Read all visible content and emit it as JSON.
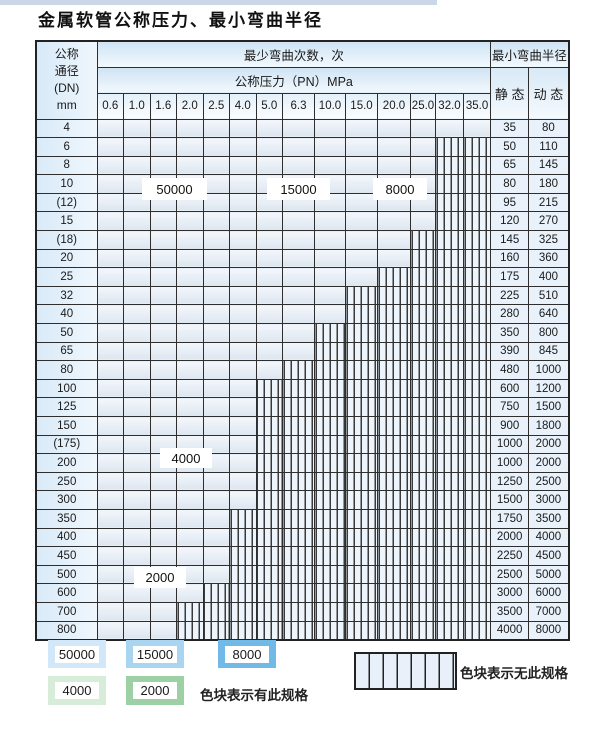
{
  "page": {
    "title": "金属软管公称压力、最小弯曲半径"
  },
  "colors": {
    "b1": "#d2e7f7",
    "b2": "#a9d5f1",
    "b3": "#71bae7",
    "g1": "#d8ecda",
    "g2": "#9dd0a5"
  },
  "table": {
    "header": {
      "dn_lines": [
        "公称",
        "通径",
        "(DN)",
        "mm"
      ],
      "bend_cycles": "最少弯曲次数，次",
      "pressure": "公称压力（PN）MPa",
      "min_radius": "最小弯曲半径",
      "static": "静 态",
      "dynamic": "动 态",
      "pressure_cols": [
        "0.6",
        "1.0",
        "1.6",
        "2.0",
        "2.5",
        "4.0",
        "5.0",
        "6.3",
        "10.0",
        "15.0",
        "20.0",
        "25.0",
        "32.0",
        "35.0"
      ]
    },
    "rows": [
      {
        "dn": "4",
        "static": "35",
        "dynamic": "80",
        "cells": [
          "b1",
          "b1",
          "b1",
          "b1",
          "b1",
          "b1",
          "b2",
          "b2",
          "b2",
          "b3",
          "b3",
          "b3",
          "b3",
          "b3"
        ]
      },
      {
        "dn": "6",
        "static": "50",
        "dynamic": "110",
        "cells": [
          "b1",
          "b1",
          "b1",
          "b1",
          "b1",
          "b1",
          "b2",
          "b2",
          "b2",
          "b3",
          "b3",
          "b3",
          "h",
          "h"
        ]
      },
      {
        "dn": "8",
        "static": "65",
        "dynamic": "145",
        "cells": [
          "b1",
          "b1",
          "b1",
          "b1",
          "b1",
          "b1",
          "b2",
          "b2",
          "b2",
          "b3",
          "b3",
          "b3",
          "h",
          "h"
        ]
      },
      {
        "dn": "10",
        "static": "80",
        "dynamic": "180",
        "cells": [
          "b1",
          "b1",
          "b1",
          "b1",
          "b1",
          "b1",
          "b2",
          "b2",
          "b2",
          "b3",
          "b3",
          "b3",
          "h",
          "h"
        ]
      },
      {
        "dn": "(12)",
        "static": "95",
        "dynamic": "215",
        "cells": [
          "b1",
          "b1",
          "b1",
          "b1",
          "b1",
          "b1",
          "b2",
          "b2",
          "b2",
          "b3",
          "b3",
          "b3",
          "h",
          "h"
        ]
      },
      {
        "dn": "15",
        "static": "120",
        "dynamic": "270",
        "cells": [
          "b1",
          "b1",
          "b1",
          "b1",
          "b1",
          "b1",
          "b2",
          "b2",
          "b2",
          "b3",
          "b3",
          "b3",
          "h",
          "h"
        ]
      },
      {
        "dn": "(18)",
        "static": "145",
        "dynamic": "325",
        "cells": [
          "b1",
          "b1",
          "b1",
          "b1",
          "b1",
          "b1",
          "b2",
          "b2",
          "b2",
          "b3",
          "b3",
          "h",
          "h",
          "h"
        ]
      },
      {
        "dn": "20",
        "static": "160",
        "dynamic": "360",
        "cells": [
          "b1",
          "b1",
          "b1",
          "b1",
          "b1",
          "b1",
          "b2",
          "b2",
          "b2",
          "b3",
          "b3",
          "h",
          "h",
          "h"
        ]
      },
      {
        "dn": "25",
        "static": "175",
        "dynamic": "400",
        "cells": [
          "b1",
          "b1",
          "b1",
          "b1",
          "b1",
          "b1",
          "b2",
          "b2",
          "b2",
          "b3",
          "h",
          "h",
          "h",
          "h"
        ]
      },
      {
        "dn": "32",
        "static": "225",
        "dynamic": "510",
        "cells": [
          "b1",
          "b1",
          "b1",
          "b1",
          "b1",
          "b2",
          "b2",
          "b3",
          "b3",
          "h",
          "h",
          "h",
          "h",
          "h"
        ]
      },
      {
        "dn": "40",
        "static": "280",
        "dynamic": "640",
        "cells": [
          "b1",
          "b1",
          "b1",
          "b1",
          "b1",
          "b2",
          "b2",
          "b3",
          "b3",
          "h",
          "h",
          "h",
          "h",
          "h"
        ]
      },
      {
        "dn": "50",
        "static": "350",
        "dynamic": "800",
        "cells": [
          "b1",
          "b1",
          "b1",
          "b1",
          "b1",
          "b2",
          "b3",
          "b3",
          "h",
          "h",
          "h",
          "h",
          "h",
          "h"
        ]
      },
      {
        "dn": "65",
        "static": "390",
        "dynamic": "845",
        "cells": [
          "b1",
          "b1",
          "b1",
          "b1",
          "b1",
          "b2",
          "b3",
          "b3",
          "h",
          "h",
          "h",
          "h",
          "h",
          "h"
        ]
      },
      {
        "dn": "80",
        "static": "480",
        "dynamic": "1000",
        "cells": [
          "b1",
          "b1",
          "b1",
          "b1",
          "b2",
          "b3",
          "b3",
          "h",
          "h",
          "h",
          "h",
          "h",
          "h",
          "h"
        ]
      },
      {
        "dn": "100",
        "static": "600",
        "dynamic": "1200",
        "cells": [
          "g1",
          "g1",
          "g1",
          "g1",
          "g1",
          "g1",
          "h",
          "h",
          "h",
          "h",
          "h",
          "h",
          "h",
          "h"
        ]
      },
      {
        "dn": "125",
        "static": "750",
        "dynamic": "1500",
        "cells": [
          "g1",
          "g1",
          "g1",
          "g1",
          "g1",
          "g1",
          "h",
          "h",
          "h",
          "h",
          "h",
          "h",
          "h",
          "h"
        ]
      },
      {
        "dn": "150",
        "static": "900",
        "dynamic": "1800",
        "cells": [
          "g1",
          "g1",
          "g1",
          "g1",
          "g1",
          "g1",
          "h",
          "h",
          "h",
          "h",
          "h",
          "h",
          "h",
          "h"
        ]
      },
      {
        "dn": "(175)",
        "static": "1000",
        "dynamic": "2000",
        "cells": [
          "g1",
          "g1",
          "g1",
          "g1",
          "g1",
          "g1",
          "h",
          "h",
          "h",
          "h",
          "h",
          "h",
          "h",
          "h"
        ]
      },
      {
        "dn": "200",
        "static": "1000",
        "dynamic": "2000",
        "cells": [
          "g1",
          "g1",
          "g1",
          "g1",
          "g1",
          "g1",
          "h",
          "h",
          "h",
          "h",
          "h",
          "h",
          "h",
          "h"
        ]
      },
      {
        "dn": "250",
        "static": "1250",
        "dynamic": "2500",
        "cells": [
          "g1",
          "g1",
          "g1",
          "g1",
          "g1",
          "g1",
          "h",
          "h",
          "h",
          "h",
          "h",
          "h",
          "h",
          "h"
        ]
      },
      {
        "dn": "300",
        "static": "1500",
        "dynamic": "3000",
        "cells": [
          "g1",
          "g1",
          "g1",
          "g1",
          "g1",
          "g1",
          "h",
          "h",
          "h",
          "h",
          "h",
          "h",
          "h",
          "h"
        ]
      },
      {
        "dn": "350",
        "static": "1750",
        "dynamic": "3500",
        "cells": [
          "g2",
          "g2",
          "g2",
          "g2",
          "g2",
          "h",
          "h",
          "h",
          "h",
          "h",
          "h",
          "h",
          "h",
          "h"
        ]
      },
      {
        "dn": "400",
        "static": "2000",
        "dynamic": "4000",
        "cells": [
          "g2",
          "g2",
          "g2",
          "g2",
          "g2",
          "h",
          "h",
          "h",
          "h",
          "h",
          "h",
          "h",
          "h",
          "h"
        ]
      },
      {
        "dn": "450",
        "static": "2250",
        "dynamic": "4500",
        "cells": [
          "g2",
          "g2",
          "g2",
          "g2",
          "g2",
          "h",
          "h",
          "h",
          "h",
          "h",
          "h",
          "h",
          "h",
          "h"
        ]
      },
      {
        "dn": "500",
        "static": "2500",
        "dynamic": "5000",
        "cells": [
          "g2",
          "g2",
          "g2",
          "g2",
          "g2",
          "h",
          "h",
          "h",
          "h",
          "h",
          "h",
          "h",
          "h",
          "h"
        ]
      },
      {
        "dn": "600",
        "static": "3000",
        "dynamic": "6000",
        "cells": [
          "g2",
          "g2",
          "g2",
          "g2",
          "h",
          "h",
          "h",
          "h",
          "h",
          "h",
          "h",
          "h",
          "h",
          "h"
        ]
      },
      {
        "dn": "700",
        "static": "3500",
        "dynamic": "7000",
        "cells": [
          "g2",
          "g2",
          "g2",
          "h",
          "h",
          "h",
          "h",
          "h",
          "h",
          "h",
          "h",
          "h",
          "h",
          "h"
        ]
      },
      {
        "dn": "800",
        "static": "4000",
        "dynamic": "8000",
        "cells": [
          "g2",
          "g2",
          "g2",
          "h",
          "h",
          "h",
          "h",
          "h",
          "h",
          "h",
          "h",
          "h",
          "h",
          "h"
        ]
      }
    ]
  },
  "overlays": {
    "l50000": "50000",
    "l15000": "15000",
    "l8000": "8000",
    "l4000": "4000",
    "l2000": "2000"
  },
  "legend": {
    "items": [
      {
        "value": "50000",
        "color_key": "b1"
      },
      {
        "value": "15000",
        "color_key": "b2"
      },
      {
        "value": "8000",
        "color_key": "b3"
      },
      {
        "value": "4000",
        "color_key": "g1"
      },
      {
        "value": "2000",
        "color_key": "g2"
      }
    ],
    "has_spec_text": "色块表示有此规格",
    "no_spec_text": "色块表示无此规格"
  }
}
